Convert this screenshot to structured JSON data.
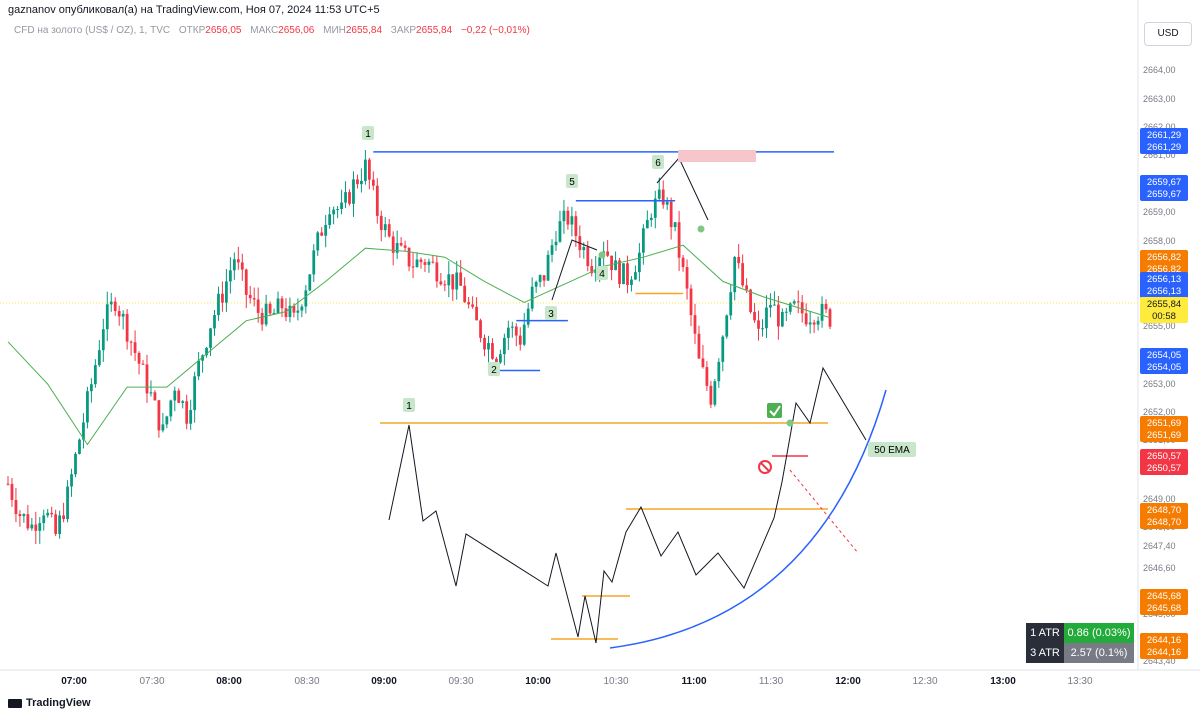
{
  "header": "gaznanov опубликовал(а) на TradingView.com, Ноя 07, 2024 11:53 UTC+5",
  "legend": {
    "symbol": "CFD на золото (US$ / OZ), 1, TVC",
    "open_label": "ОТКР",
    "open": "2656,05",
    "high_label": "МАКС",
    "high": "2656,06",
    "low_label": "МИН",
    "low": "2655,84",
    "close_label": "ЗАКР",
    "close": "2655,84",
    "change": "−0,22 (−0,01%)"
  },
  "currency": "USD",
  "footer_logo": "TradingView",
  "atr": [
    {
      "label": "1 ATR",
      "value": "0.86 (0.03%)",
      "color": "#22ab3a"
    },
    {
      "label": "3 ATR",
      "value": "2.57 (0.1%)",
      "color": "#787b86"
    }
  ],
  "colors": {
    "up": "#089981",
    "down": "#f23645",
    "ema": "#4caf50",
    "blue": "#2962ff",
    "orange": "#f5a623"
  },
  "chart_data": {
    "type": "candlestick",
    "yticks": [
      "2664,00",
      "2663,00",
      "2662,00",
      "2661,00",
      "2660,00",
      "2659,00",
      "2658,00",
      "2657,00",
      "2656,00",
      "2655,00",
      "2654,00",
      "2653,00",
      "2652,00",
      "2651,00",
      "2650,00",
      "2649,00",
      "2648,00",
      "2647,40",
      "2646,60",
      "2645,00",
      "2644,00",
      "2643,40"
    ],
    "xticks": [
      "07:00",
      "07:30",
      "08:00",
      "08:30",
      "09:00",
      "09:30",
      "10:00",
      "10:30",
      "11:00",
      "11:30",
      "12:00",
      "12:30",
      "13:00",
      "13:30"
    ],
    "price_path": [
      [
        0,
        2650.3
      ],
      [
        3,
        2649.3
      ],
      [
        6,
        2648.9
      ],
      [
        9,
        2649.5
      ],
      [
        12,
        2648.6
      ],
      [
        15,
        2649.9
      ],
      [
        18,
        2651.8
      ],
      [
        21,
        2653.6
      ],
      [
        24,
        2655.6
      ],
      [
        27,
        2656.4
      ],
      [
        30,
        2655.4
      ],
      [
        33,
        2654.3
      ],
      [
        36,
        2653.2
      ],
      [
        39,
        2652.0
      ],
      [
        42,
        2653.6
      ],
      [
        45,
        2652.6
      ],
      [
        48,
        2654.2
      ],
      [
        51,
        2655.6
      ],
      [
        54,
        2656.6
      ],
      [
        57,
        2657.8
      ],
      [
        60,
        2656.6
      ],
      [
        63,
        2656.0
      ],
      [
        66,
        2655.8
      ],
      [
        69,
        2656.2
      ],
      [
        72,
        2655.7
      ],
      [
        75,
        2656.9
      ],
      [
        78,
        2658.3
      ],
      [
        81,
        2659.6
      ],
      [
        84,
        2659.3
      ],
      [
        87,
        2660.2
      ],
      [
        90,
        2660.8
      ],
      [
        93,
        2659.3
      ],
      [
        96,
        2658.4
      ],
      [
        99,
        2657.9
      ],
      [
        102,
        2657.6
      ],
      [
        105,
        2657.7
      ],
      [
        108,
        2657.4
      ],
      [
        111,
        2657.1
      ],
      [
        114,
        2656.8
      ],
      [
        117,
        2655.8
      ],
      [
        120,
        2655.1
      ],
      [
        123,
        2654.6
      ],
      [
        126,
        2655.5
      ],
      [
        129,
        2655.1
      ],
      [
        132,
        2656.6
      ],
      [
        135,
        2657.2
      ],
      [
        138,
        2658.7
      ],
      [
        141,
        2659.1
      ],
      [
        144,
        2658.3
      ],
      [
        147,
        2657.6
      ],
      [
        150,
        2658.2
      ],
      [
        153,
        2657.4
      ],
      [
        156,
        2657.1
      ],
      [
        159,
        2657.9
      ],
      [
        162,
        2659.4
      ],
      [
        165,
        2659.8
      ],
      [
        168,
        2658.6
      ],
      [
        171,
        2656.6
      ],
      [
        174,
        2654.3
      ],
      [
        177,
        2653.2
      ],
      [
        180,
        2655.3
      ],
      [
        183,
        2657.8
      ],
      [
        186,
        2656.4
      ],
      [
        189,
        2655.2
      ],
      [
        192,
        2656.3
      ],
      [
        195,
        2655.6
      ],
      [
        198,
        2656.1
      ],
      [
        201,
        2655.9
      ],
      [
        204,
        2656.0
      ],
      [
        207,
        2655.8
      ]
    ],
    "ema50": [
      [
        0,
        2655.0
      ],
      [
        10,
        2653.6
      ],
      [
        20,
        2651.6
      ],
      [
        30,
        2653.5
      ],
      [
        40,
        2653.5
      ],
      [
        50,
        2654.6
      ],
      [
        60,
        2655.7
      ],
      [
        70,
        2656.0
      ],
      [
        80,
        2657.0
      ],
      [
        90,
        2658.1
      ],
      [
        100,
        2658.0
      ],
      [
        110,
        2657.8
      ],
      [
        120,
        2657.0
      ],
      [
        130,
        2656.3
      ],
      [
        140,
        2656.9
      ],
      [
        150,
        2657.5
      ],
      [
        160,
        2657.8
      ],
      [
        170,
        2658.2
      ],
      [
        180,
        2657.0
      ],
      [
        190,
        2656.5
      ],
      [
        207,
        2655.8
      ]
    ],
    "levels": [
      {
        "name": "level-1",
        "price": 2661.29,
        "color": "#2962ff",
        "x0": 92,
        "x1": 208
      },
      {
        "name": "level-5",
        "price": 2659.67,
        "color": "#2962ff",
        "x0": 143,
        "x1": 168
      },
      {
        "name": "level-2",
        "price": 2654.05,
        "color": "#2962ff",
        "x0": 121,
        "x1": 134
      },
      {
        "name": "level-3",
        "price": 2655.7,
        "color": "#2962ff",
        "x0": 128,
        "x1": 141
      },
      {
        "name": "level-4",
        "price": 2656.6,
        "color": "#f5a623",
        "x0": 158,
        "x1": 170
      }
    ],
    "price_labels": [
      {
        "value": "2661,29",
        "color": "#2962ff"
      },
      {
        "value": "2659,67",
        "color": "#2962ff"
      },
      {
        "value": "2656,82",
        "color": "#f57c00"
      },
      {
        "value": "2656,13",
        "color": "#2962ff"
      },
      {
        "value": "2655,84",
        "color": "#ffeb3b",
        "sub": "00:58"
      },
      {
        "value": "2654,05",
        "color": "#2962ff"
      },
      {
        "value": "2651,69",
        "color": "#f57c00"
      },
      {
        "value": "2650,57",
        "color": "#f23645"
      },
      {
        "value": "2648,70",
        "color": "#f57c00"
      },
      {
        "value": "2645,68",
        "color": "#f57c00"
      },
      {
        "value": "2644,16",
        "color": "#f57c00"
      }
    ],
    "annotations": [
      "1",
      "2",
      "3",
      "4",
      "5",
      "6",
      "1",
      "50 EMA"
    ]
  }
}
